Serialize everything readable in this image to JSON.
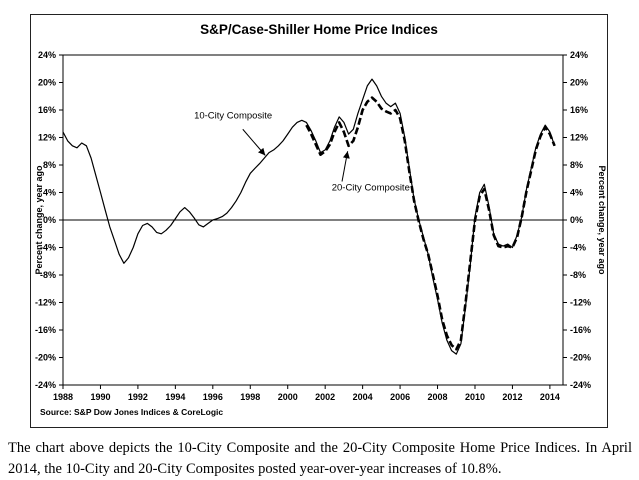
{
  "chart_data": {
    "type": "line",
    "title": "S&P/Case-Shiller Home Price Indices",
    "source": "Source: S&P Dow Jones Indices & CoreLogic",
    "ylabel_left": "Percent change, year ago",
    "ylabel_right": "Percent change, year ago",
    "xlabel": "",
    "x_range": [
      1988,
      2014.7
    ],
    "ylim": [
      -24,
      24
    ],
    "y_tick_step": 4,
    "grid": false,
    "legend": "in-plot arrow annotations",
    "x_ticks": [
      1988,
      1990,
      1992,
      1994,
      1996,
      1998,
      2000,
      2002,
      2004,
      2006,
      2008,
      2010,
      2012,
      2014
    ],
    "series": [
      {
        "name": "10-City Composite",
        "style": "solid",
        "x_start": 1988.0,
        "x_step": 0.25,
        "values": [
          12.8,
          11.5,
          10.8,
          10.5,
          11.2,
          10.8,
          9.0,
          6.5,
          4.0,
          1.5,
          -1.0,
          -3.0,
          -5.0,
          -6.3,
          -5.5,
          -4.0,
          -2.0,
          -0.8,
          -0.5,
          -1.0,
          -1.8,
          -2.0,
          -1.5,
          -0.8,
          0.2,
          1.2,
          1.8,
          1.2,
          0.3,
          -0.7,
          -1.0,
          -0.5,
          0.0,
          0.2,
          0.5,
          1.0,
          1.8,
          2.8,
          4.0,
          5.5,
          6.8,
          7.5,
          8.2,
          9.0,
          9.8,
          10.2,
          10.8,
          11.5,
          12.5,
          13.5,
          14.2,
          14.5,
          14.2,
          13.0,
          11.5,
          9.8,
          10.2,
          11.5,
          13.5,
          15.0,
          14.2,
          12.5,
          13.2,
          15.5,
          17.5,
          19.5,
          20.5,
          19.5,
          18.0,
          17.0,
          16.5,
          17.0,
          15.5,
          12.0,
          7.5,
          3.0,
          0.0,
          -2.5,
          -5.0,
          -8.5,
          -11.5,
          -15.0,
          -17.5,
          -19.0,
          -19.5,
          -18.0,
          -12.5,
          -6.5,
          0.5,
          4.0,
          5.2,
          2.0,
          -2.0,
          -3.5,
          -3.8,
          -3.5,
          -4.0,
          -2.2,
          0.5,
          4.5,
          7.5,
          10.5,
          12.5,
          13.8,
          12.8,
          10.8
        ]
      },
      {
        "name": "20-City Composite",
        "style": "dashed",
        "x_start": 2001.0,
        "x_step": 0.25,
        "values": [
          13.8,
          12.5,
          11.0,
          9.5,
          10.0,
          11.0,
          12.8,
          14.2,
          12.8,
          10.8,
          11.5,
          13.5,
          16.0,
          17.2,
          17.8,
          17.2,
          16.2,
          15.8,
          15.5,
          16.0,
          14.8,
          11.5,
          7.0,
          2.8,
          -0.2,
          -2.8,
          -5.0,
          -8.0,
          -11.0,
          -14.5,
          -16.8,
          -18.2,
          -18.8,
          -17.5,
          -12.0,
          -6.0,
          0.0,
          3.5,
          4.5,
          1.5,
          -2.2,
          -3.8,
          -4.0,
          -3.8,
          -4.0,
          -2.5,
          0.5,
          4.2,
          7.2,
          10.2,
          12.2,
          13.5,
          12.5,
          10.8
        ]
      }
    ],
    "annotations": [
      {
        "text": "10-City Composite",
        "text_xy": [
          1995.0,
          14.8
        ],
        "arrow_from": [
          1997.6,
          13.2
        ],
        "arrow_to": [
          1998.8,
          9.4
        ]
      },
      {
        "text": "20-City Composite",
        "text_xy": [
          2002.35,
          4.3
        ],
        "arrow_from": [
          2002.9,
          5.6
        ],
        "arrow_to": [
          2003.2,
          10.0
        ]
      }
    ]
  },
  "caption": "The chart above depicts the 10-City Composite and the 20-City Composite Home Price Indices. In April 2014, the 10-City and 20-City Composites posted year-over-year increases of 10.8%."
}
